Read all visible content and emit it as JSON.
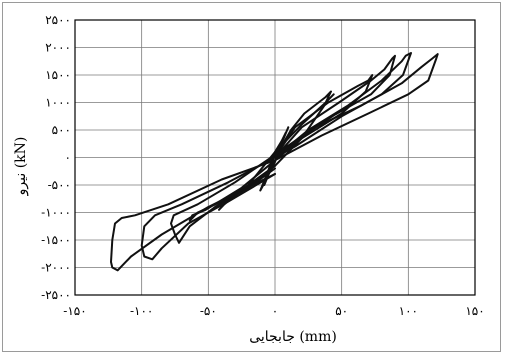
{
  "chart_data": {
    "type": "line",
    "title": "",
    "xlabel": "جابجایی (mm)",
    "ylabel": "نیرو (kN)",
    "xlim": [
      -150,
      150
    ],
    "ylim": [
      -2500,
      2500
    ],
    "x_ticks": [
      -150,
      -100,
      -50,
      0,
      50,
      100,
      150
    ],
    "y_ticks": [
      2500,
      2000,
      1500,
      1000,
      500,
      0,
      -500,
      -1000,
      -1500,
      -2000,
      -2500
    ],
    "x_tick_labels": [
      "-۱۵۰",
      "-۱۰۰",
      "-۵۰",
      "۰",
      "۵۰",
      "۱۰۰",
      "۱۵۰"
    ],
    "y_tick_labels": [
      "۲۵۰۰",
      "۲۰۰۰",
      "۱۵۰۰",
      "۱۰۰۰",
      "۵۰۰",
      "۰",
      "-۵۰۰",
      "-۱۰۰۰",
      "-۱۵۰۰",
      "-۲۰۰۰",
      "-۲۵۰۰"
    ],
    "grid": true,
    "legend": "none",
    "line_color": "#111111",
    "series": [
      {
        "values": [
          [
            0,
            0
          ],
          [
            4,
            250
          ],
          [
            8,
            450
          ],
          [
            5,
            300
          ],
          [
            0,
            80
          ],
          [
            -4,
            -250
          ],
          [
            -8,
            -500
          ],
          [
            -5,
            -320
          ],
          [
            0,
            -80
          ],
          [
            4,
            200
          ],
          [
            10,
            550
          ],
          [
            7,
            380
          ],
          [
            0,
            100
          ],
          [
            -6,
            -300
          ],
          [
            -11,
            -600
          ],
          [
            -7,
            -420
          ],
          [
            0,
            -60
          ]
        ]
      },
      {
        "values": [
          [
            0,
            0
          ],
          [
            12,
            500
          ],
          [
            22,
            800
          ],
          [
            38,
            1100
          ],
          [
            42,
            1200
          ],
          [
            38,
            1000
          ],
          [
            20,
            600
          ],
          [
            0,
            100
          ],
          [
            -20,
            -500
          ],
          [
            -38,
            -850
          ],
          [
            -42,
            -950
          ],
          [
            -36,
            -780
          ],
          [
            -20,
            -500
          ],
          [
            0,
            -150
          ],
          [
            20,
            350
          ],
          [
            40,
            1050
          ],
          [
            44,
            1150
          ]
        ]
      },
      {
        "values": [
          [
            0,
            0
          ],
          [
            15,
            550
          ],
          [
            40,
            1000
          ],
          [
            62,
            1300
          ],
          [
            70,
            1400
          ],
          [
            73,
            1500
          ],
          [
            68,
            1200
          ],
          [
            50,
            800
          ],
          [
            20,
            350
          ],
          [
            0,
            -50
          ],
          [
            -25,
            -550
          ],
          [
            -52,
            -950
          ],
          [
            -62,
            -1050
          ],
          [
            -64,
            -1150
          ],
          [
            -58,
            -1000
          ],
          [
            -40,
            -800
          ],
          [
            -15,
            -450
          ],
          [
            0,
            -150
          ]
        ]
      },
      {
        "values": [
          [
            0,
            0
          ],
          [
            20,
            550
          ],
          [
            48,
            1000
          ],
          [
            72,
            1400
          ],
          [
            82,
            1600
          ],
          [
            88,
            1800
          ],
          [
            90,
            1850
          ],
          [
            86,
            1500
          ],
          [
            72,
            1150
          ],
          [
            45,
            780
          ],
          [
            15,
            300
          ],
          [
            0,
            50
          ],
          [
            -30,
            -450
          ],
          [
            -58,
            -850
          ],
          [
            -76,
            -1050
          ],
          [
            -78,
            -1200
          ],
          [
            -75,
            -1400
          ],
          [
            -72,
            -1550
          ],
          [
            -64,
            -1250
          ],
          [
            -45,
            -900
          ],
          [
            -20,
            -550
          ],
          [
            0,
            -200
          ]
        ]
      },
      {
        "values": [
          [
            0,
            0
          ],
          [
            25,
            500
          ],
          [
            55,
            950
          ],
          [
            80,
            1400
          ],
          [
            95,
            1750
          ],
          [
            98,
            1850
          ],
          [
            102,
            1900
          ],
          [
            96,
            1500
          ],
          [
            80,
            1150
          ],
          [
            50,
            750
          ],
          [
            15,
            200
          ],
          [
            0,
            0
          ],
          [
            -35,
            -450
          ],
          [
            -70,
            -850
          ],
          [
            -90,
            -1050
          ],
          [
            -98,
            -1250
          ],
          [
            -100,
            -1600
          ],
          [
            -98,
            -1800
          ],
          [
            -92,
            -1850
          ],
          [
            -85,
            -1650
          ],
          [
            -65,
            -1200
          ],
          [
            -35,
            -800
          ],
          [
            0,
            -300
          ]
        ]
      },
      {
        "values": [
          [
            0,
            0
          ],
          [
            30,
            550
          ],
          [
            65,
            950
          ],
          [
            95,
            1350
          ],
          [
            110,
            1650
          ],
          [
            118,
            1800
          ],
          [
            122,
            1880
          ],
          [
            121,
            1800
          ],
          [
            115,
            1400
          ],
          [
            100,
            1150
          ],
          [
            70,
            800
          ],
          [
            35,
            400
          ],
          [
            0,
            -50
          ],
          [
            -40,
            -400
          ],
          [
            -80,
            -850
          ],
          [
            -105,
            -1050
          ],
          [
            -115,
            -1100
          ],
          [
            -120,
            -1200
          ],
          [
            -122,
            -1500
          ],
          [
            -123,
            -1900
          ],
          [
            -122,
            -2000
          ],
          [
            -118,
            -2050
          ],
          [
            -108,
            -1800
          ],
          [
            -85,
            -1400
          ],
          [
            -50,
            -900
          ],
          [
            0,
            -300
          ]
        ]
      }
    ]
  }
}
